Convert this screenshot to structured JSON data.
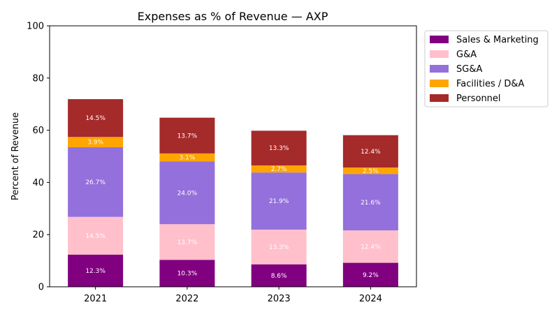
{
  "chart_data": {
    "type": "bar",
    "stacked": true,
    "title": "Expenses as % of Revenue — AXP",
    "xlabel": "",
    "ylabel": "Percent of Revenue",
    "ylim": [
      0,
      100
    ],
    "yticks": [
      0,
      20,
      40,
      60,
      80,
      100
    ],
    "categories": [
      "2021",
      "2022",
      "2023",
      "2024"
    ],
    "legend_position": "outside-top-right",
    "series": [
      {
        "name": "Sales & Marketing",
        "color": "#800080",
        "values": [
          12.3,
          10.3,
          8.6,
          9.2
        ],
        "labels": [
          "12.3%",
          "10.3%",
          "8.6%",
          "9.2%"
        ]
      },
      {
        "name": "G&A",
        "color": "#ffc0cb",
        "values": [
          14.5,
          13.7,
          13.3,
          12.4
        ],
        "labels": [
          "14.5%",
          "13.7%",
          "13.3%",
          "12.4%"
        ]
      },
      {
        "name": "SG&A",
        "color": "#9370db",
        "values": [
          26.7,
          24.0,
          21.9,
          21.6
        ],
        "labels": [
          "26.7%",
          "24.0%",
          "21.9%",
          "21.6%"
        ]
      },
      {
        "name": "Facilities / D&A",
        "color": "#ffa500",
        "values": [
          3.9,
          3.1,
          2.7,
          2.5
        ],
        "labels": [
          "3.9%",
          "3.1%",
          "2.7%",
          "2.5%"
        ]
      },
      {
        "name": "Personnel",
        "color": "#a52a2a",
        "values": [
          14.5,
          13.7,
          13.3,
          12.4
        ],
        "labels": [
          "14.5%",
          "13.7%",
          "13.3%",
          "12.4%"
        ]
      }
    ]
  }
}
